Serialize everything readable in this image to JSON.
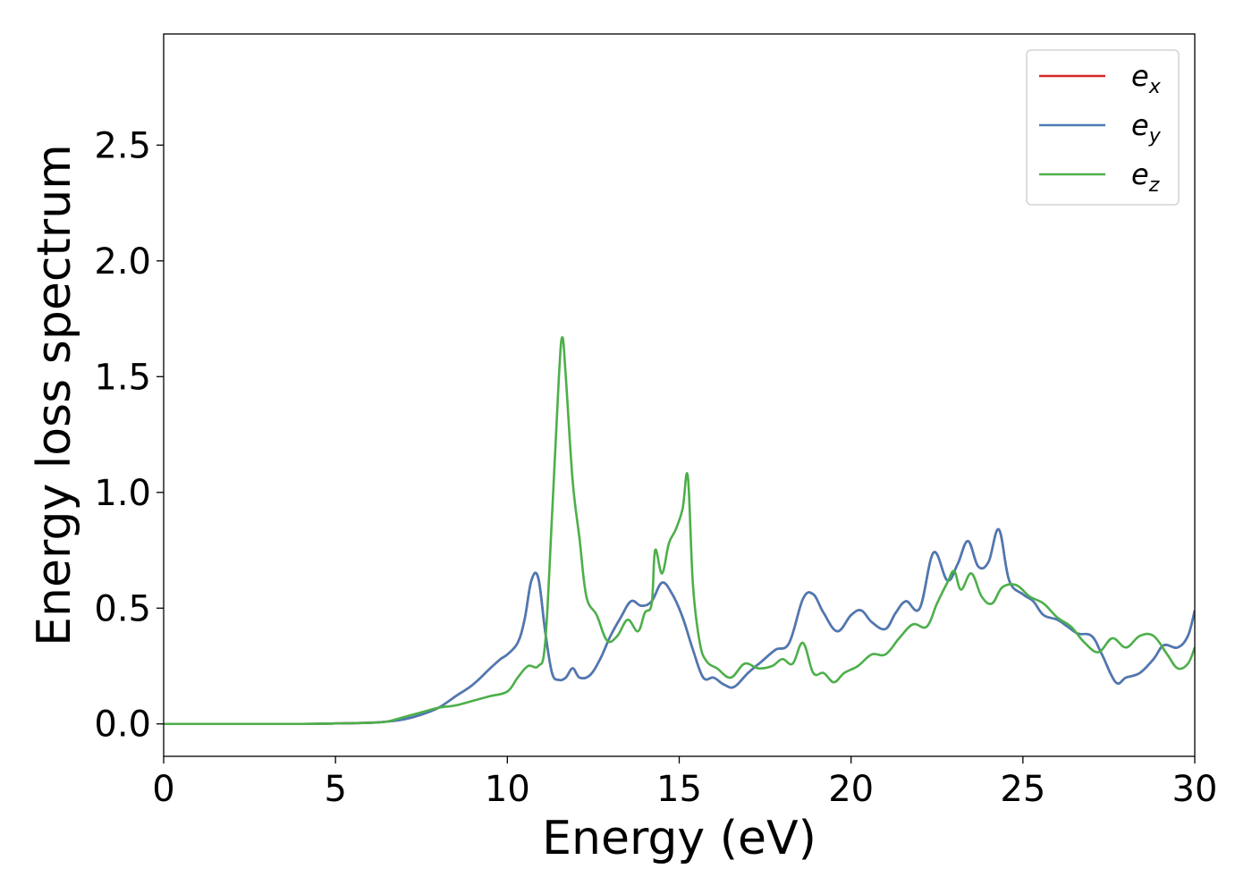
{
  "chart_data": {
    "type": "line",
    "title": "",
    "xlabel": "Energy (eV)",
    "ylabel": "Energy loss spectrum",
    "xlim": [
      0,
      30
    ],
    "ylim": [
      -0.14,
      2.98
    ],
    "xticks": [
      0,
      5,
      10,
      15,
      20,
      25,
      30
    ],
    "yticks": [
      0.0,
      0.5,
      1.0,
      1.5,
      2.0,
      2.5
    ],
    "xtick_labels": [
      "0",
      "5",
      "10",
      "15",
      "20",
      "25",
      "30"
    ],
    "ytick_labels": [
      "0.0",
      "0.5",
      "1.0",
      "1.5",
      "2.0",
      "2.5"
    ],
    "grid": false,
    "legend_position": "top-right",
    "series": [
      {
        "name": "e_x",
        "label_base": "e",
        "label_sub": "x",
        "color": "#d62728",
        "x": [
          0,
          2,
          4,
          5,
          6,
          6.5,
          7,
          7.5,
          8,
          8.5,
          9,
          9.5,
          9.8,
          10,
          10.3,
          10.5,
          10.7,
          10.9,
          11.1,
          11.3,
          11.5,
          11.7,
          11.9,
          12.1,
          12.4,
          12.7,
          13,
          13.3,
          13.6,
          13.9,
          14.2,
          14.5,
          14.8,
          15.1,
          15.4,
          15.7,
          16,
          16.3,
          16.6,
          17,
          17.4,
          17.8,
          18.2,
          18.6,
          18.9,
          19.2,
          19.6,
          20,
          20.3,
          20.6,
          21,
          21.3,
          21.6,
          22,
          22.4,
          22.8,
          23.1,
          23.4,
          23.7,
          24,
          24.3,
          24.6,
          25,
          25.3,
          25.6,
          26,
          26.3,
          26.6,
          27,
          27.3,
          27.7,
          28,
          28.4,
          28.8,
          29.1,
          29.5,
          29.8,
          30
        ],
        "y": [
          0,
          0,
          0,
          0.002,
          0.005,
          0.01,
          0.02,
          0.04,
          0.07,
          0.12,
          0.17,
          0.24,
          0.28,
          0.3,
          0.35,
          0.45,
          0.62,
          0.63,
          0.4,
          0.22,
          0.19,
          0.2,
          0.24,
          0.2,
          0.21,
          0.28,
          0.38,
          0.46,
          0.53,
          0.51,
          0.53,
          0.61,
          0.56,
          0.46,
          0.32,
          0.2,
          0.2,
          0.17,
          0.16,
          0.22,
          0.27,
          0.32,
          0.35,
          0.54,
          0.56,
          0.48,
          0.4,
          0.47,
          0.49,
          0.44,
          0.41,
          0.48,
          0.53,
          0.5,
          0.74,
          0.62,
          0.69,
          0.79,
          0.68,
          0.7,
          0.84,
          0.62,
          0.56,
          0.53,
          0.47,
          0.45,
          0.42,
          0.39,
          0.38,
          0.3,
          0.18,
          0.2,
          0.22,
          0.28,
          0.34,
          0.33,
          0.38,
          0.49
        ]
      },
      {
        "name": "e_y",
        "label_base": "e",
        "label_sub": "y",
        "color": "#4a7ab5",
        "x": [
          0,
          2,
          4,
          5,
          6,
          6.5,
          7,
          7.5,
          8,
          8.5,
          9,
          9.5,
          9.8,
          10,
          10.3,
          10.5,
          10.7,
          10.9,
          11.1,
          11.3,
          11.5,
          11.7,
          11.9,
          12.1,
          12.4,
          12.7,
          13,
          13.3,
          13.6,
          13.9,
          14.2,
          14.5,
          14.8,
          15.1,
          15.4,
          15.7,
          16,
          16.3,
          16.6,
          17,
          17.4,
          17.8,
          18.2,
          18.6,
          18.9,
          19.2,
          19.6,
          20,
          20.3,
          20.6,
          21,
          21.3,
          21.6,
          22,
          22.4,
          22.8,
          23.1,
          23.4,
          23.7,
          24,
          24.3,
          24.6,
          25,
          25.3,
          25.6,
          26,
          26.3,
          26.6,
          27,
          27.3,
          27.7,
          28,
          28.4,
          28.8,
          29.1,
          29.5,
          29.8,
          30
        ],
        "y": [
          0,
          0,
          0,
          0.002,
          0.005,
          0.01,
          0.02,
          0.04,
          0.07,
          0.12,
          0.17,
          0.24,
          0.28,
          0.3,
          0.35,
          0.45,
          0.62,
          0.63,
          0.4,
          0.22,
          0.19,
          0.2,
          0.24,
          0.2,
          0.21,
          0.28,
          0.38,
          0.46,
          0.53,
          0.51,
          0.53,
          0.61,
          0.56,
          0.46,
          0.32,
          0.2,
          0.2,
          0.17,
          0.16,
          0.22,
          0.27,
          0.32,
          0.35,
          0.54,
          0.56,
          0.48,
          0.4,
          0.47,
          0.49,
          0.44,
          0.41,
          0.48,
          0.53,
          0.5,
          0.74,
          0.62,
          0.69,
          0.79,
          0.68,
          0.7,
          0.84,
          0.62,
          0.56,
          0.53,
          0.47,
          0.45,
          0.42,
          0.39,
          0.38,
          0.3,
          0.18,
          0.2,
          0.22,
          0.28,
          0.34,
          0.33,
          0.38,
          0.49
        ]
      },
      {
        "name": "e_z",
        "label_base": "e",
        "label_sub": "z",
        "color": "#4daf4a",
        "x": [
          0,
          2,
          4,
          5,
          6,
          6.5,
          7,
          7.5,
          8,
          8.5,
          9,
          9.5,
          10,
          10.3,
          10.6,
          10.9,
          11.1,
          11.3,
          11.5,
          11.6,
          11.7,
          11.9,
          12.1,
          12.3,
          12.6,
          12.9,
          13.2,
          13.5,
          13.8,
          14.0,
          14.2,
          14.3,
          14.5,
          14.7,
          14.9,
          15.1,
          15.25,
          15.4,
          15.6,
          15.8,
          16.1,
          16.5,
          16.9,
          17.3,
          17.7,
          18.0,
          18.3,
          18.6,
          18.9,
          19.2,
          19.5,
          19.8,
          20.2,
          20.6,
          21,
          21.4,
          21.8,
          22.2,
          22.5,
          22.8,
          23.0,
          23.2,
          23.5,
          23.8,
          24.1,
          24.4,
          24.8,
          25.2,
          25.6,
          26,
          26.4,
          26.8,
          27.2,
          27.6,
          28,
          28.4,
          28.8,
          29.2,
          29.5,
          29.8,
          30
        ],
        "y": [
          0,
          0,
          0,
          0.002,
          0.005,
          0.01,
          0.03,
          0.05,
          0.07,
          0.08,
          0.1,
          0.12,
          0.14,
          0.2,
          0.25,
          0.25,
          0.35,
          0.9,
          1.5,
          1.67,
          1.5,
          1.05,
          0.8,
          0.55,
          0.47,
          0.36,
          0.38,
          0.45,
          0.4,
          0.48,
          0.52,
          0.75,
          0.65,
          0.78,
          0.84,
          0.93,
          1.07,
          0.6,
          0.35,
          0.27,
          0.24,
          0.2,
          0.26,
          0.24,
          0.25,
          0.28,
          0.26,
          0.35,
          0.22,
          0.22,
          0.18,
          0.22,
          0.25,
          0.3,
          0.3,
          0.37,
          0.43,
          0.42,
          0.52,
          0.61,
          0.66,
          0.58,
          0.65,
          0.55,
          0.52,
          0.59,
          0.6,
          0.55,
          0.52,
          0.46,
          0.42,
          0.35,
          0.31,
          0.37,
          0.33,
          0.38,
          0.38,
          0.3,
          0.24,
          0.26,
          0.33
        ]
      }
    ]
  }
}
